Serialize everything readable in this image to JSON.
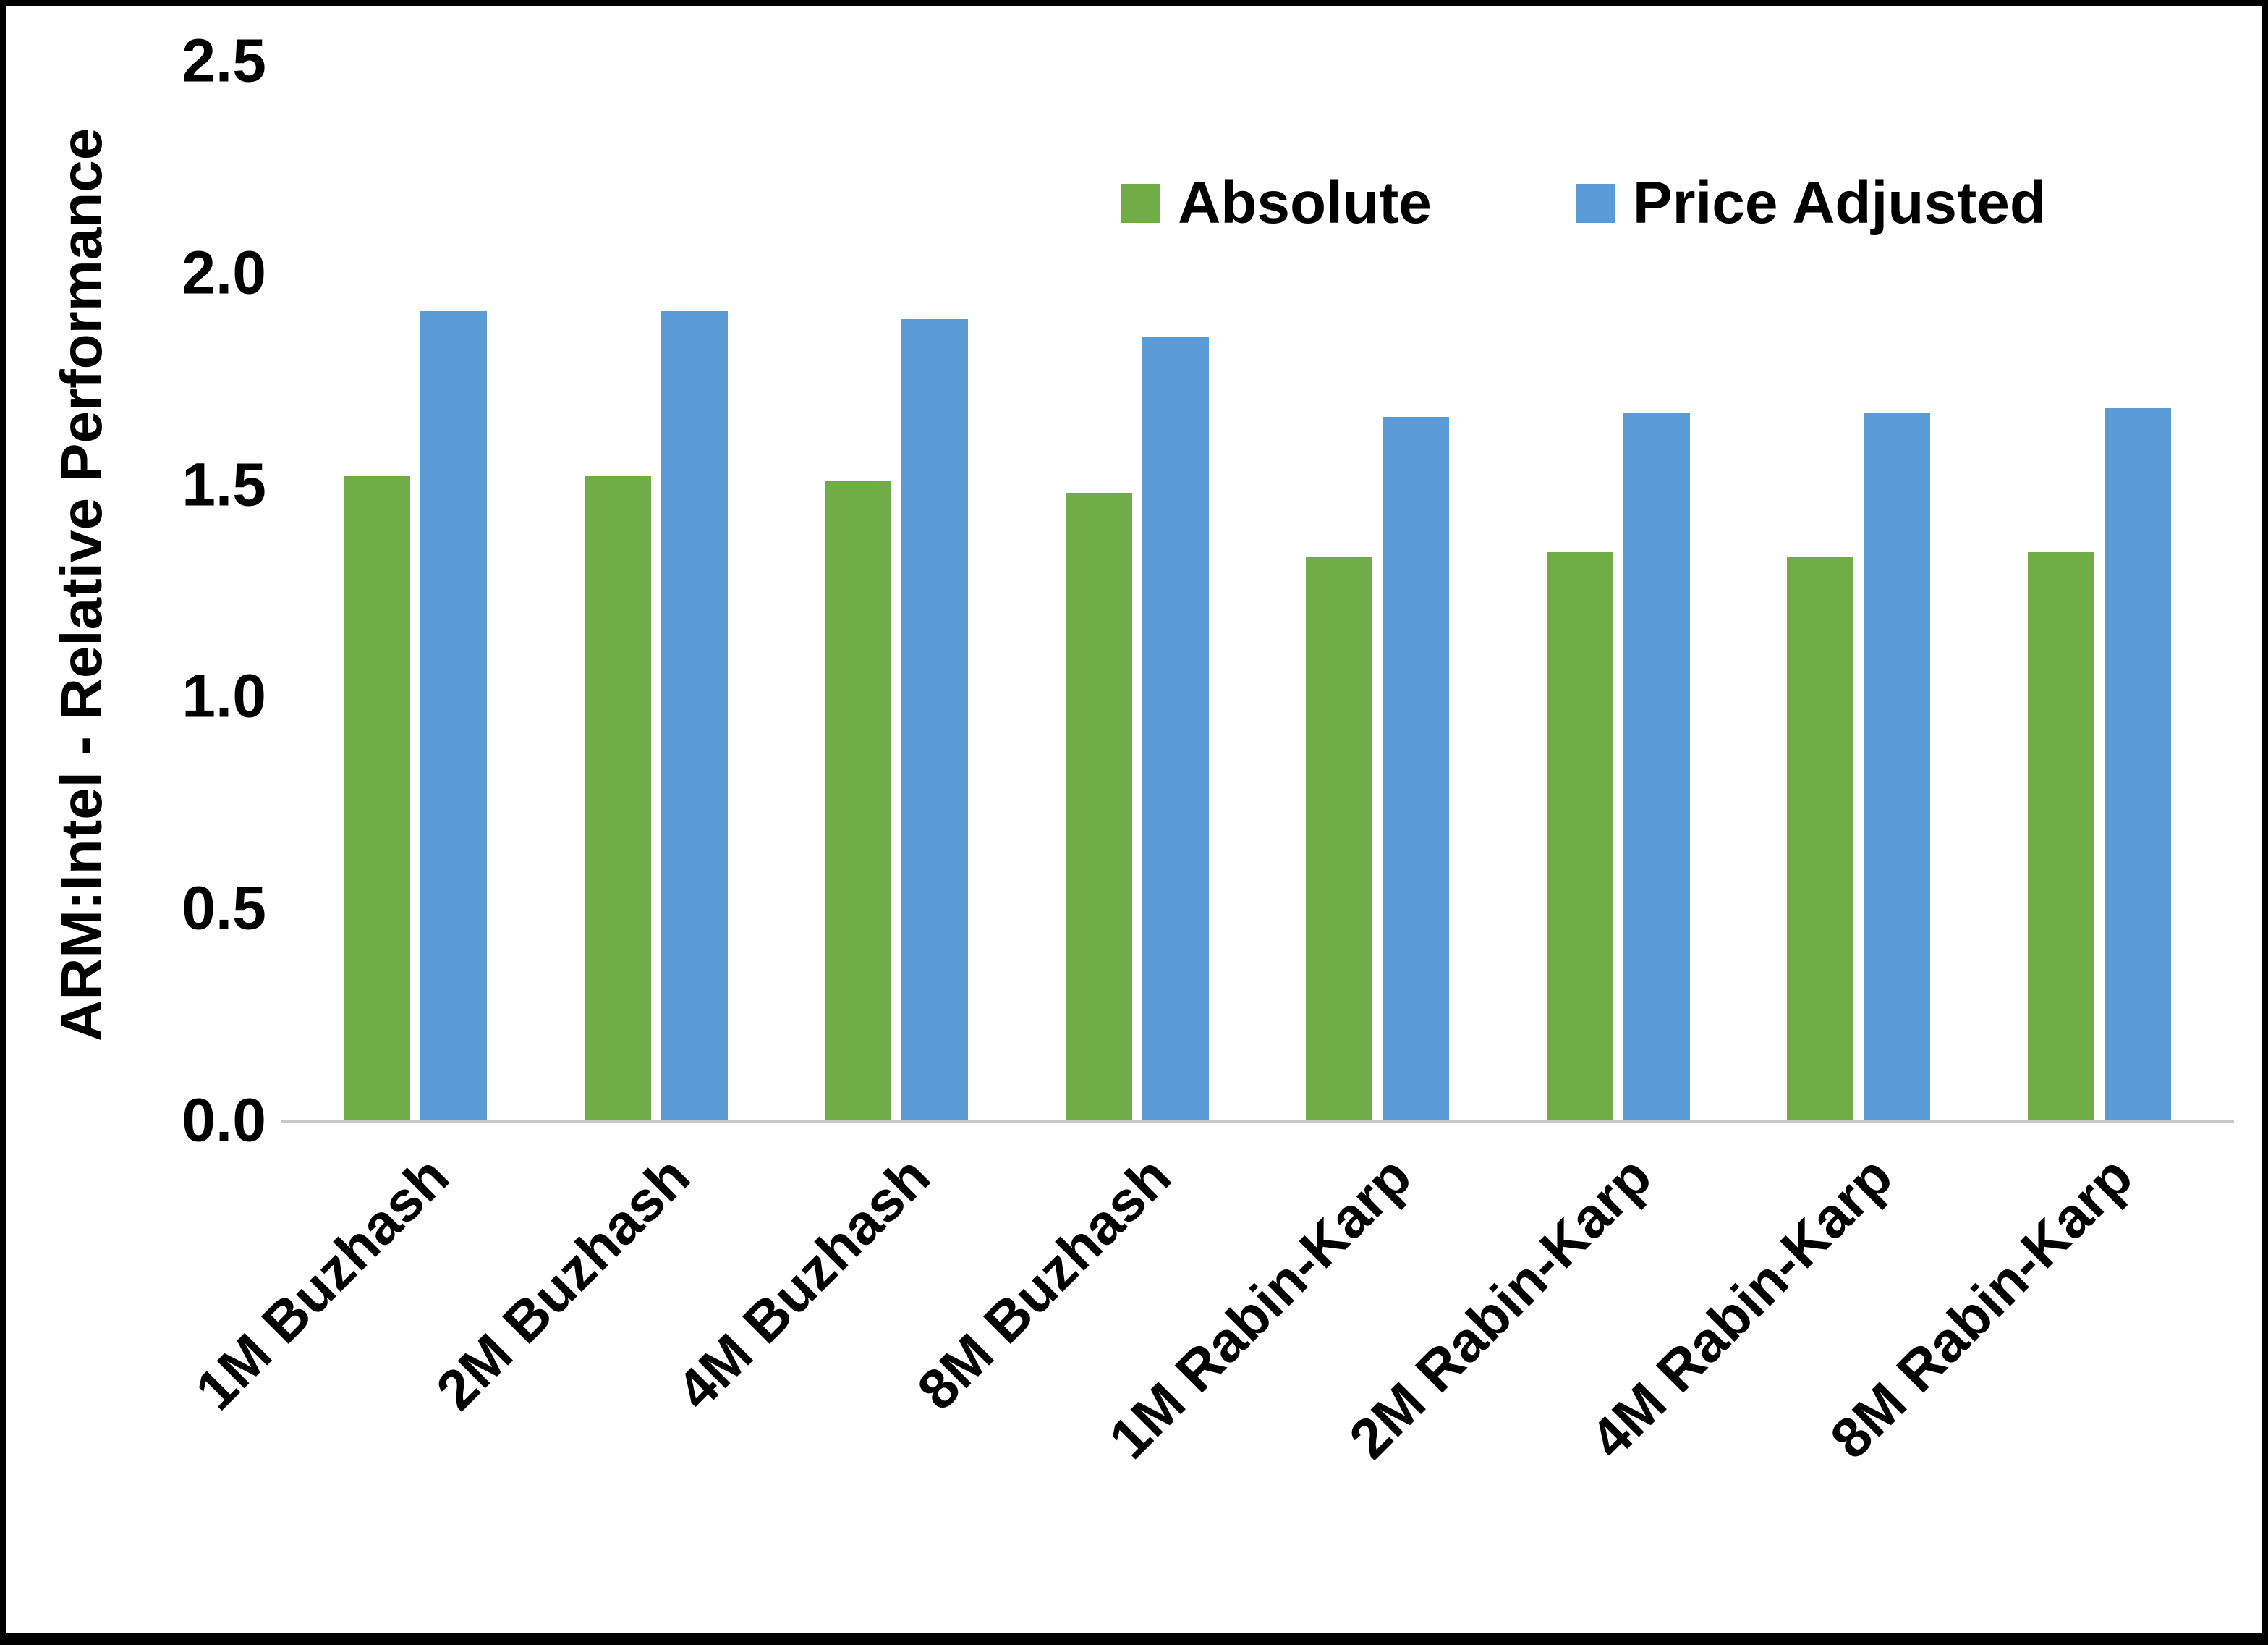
{
  "chart_data": {
    "type": "bar",
    "title": "",
    "xlabel": "",
    "ylabel": "ARM:Intel - Relative Performance",
    "ylim": [
      0,
      2.5
    ],
    "ytick_labels": [
      "0.0",
      "0.5",
      "1.0",
      "1.5",
      "2.0",
      "2.5"
    ],
    "ytick_values": [
      0,
      0.5,
      1,
      1.5,
      2,
      2.5
    ],
    "categories": [
      "1M Buzhash",
      "2M Buzhash",
      "4M Buzhash",
      "8M Buzhash",
      "1M Rabin-Karp",
      "2M Rabin-Karp",
      "4M Rabin-Karp",
      "8M Rabin-Karp"
    ],
    "series": [
      {
        "name": "Absolute",
        "color": "#70AD47",
        "values": [
          1.52,
          1.52,
          1.51,
          1.48,
          1.33,
          1.34,
          1.33,
          1.34
        ]
      },
      {
        "name": "Price Adjusted",
        "color": "#5B9BD5",
        "values": [
          1.91,
          1.91,
          1.89,
          1.85,
          1.66,
          1.67,
          1.67,
          1.68
        ]
      }
    ],
    "legend_position": "top-right",
    "grid": false,
    "axis_line_color": "#C8C8C8",
    "text_color": "#000000",
    "background_color": "#FFFFFF",
    "border_color": "#000000"
  }
}
